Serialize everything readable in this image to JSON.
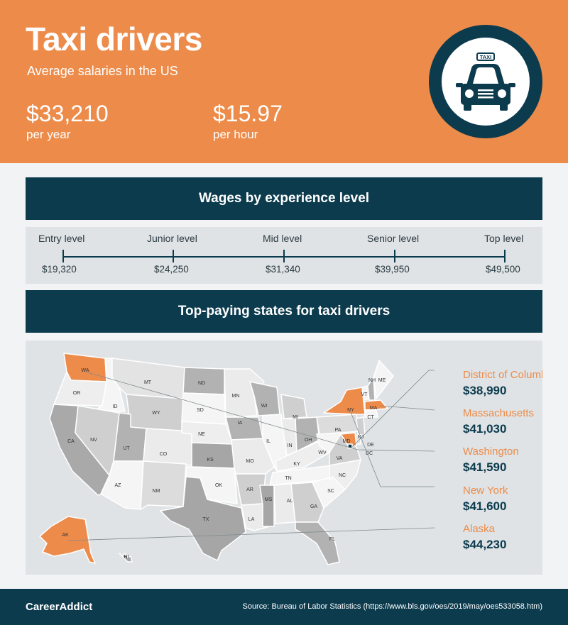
{
  "header": {
    "title": "Taxi drivers",
    "subtitle": "Average salaries in the US",
    "yearly": {
      "value": "$33,210",
      "unit": "per year"
    },
    "hourly": {
      "value": "$15.97",
      "unit": "per hour"
    },
    "taxi_sign": "TAXI",
    "icon": "taxi-icon",
    "colors": {
      "accent": "#ed8b4a",
      "navy": "#0c3b4e"
    }
  },
  "experience": {
    "heading": "Wages by experience level",
    "levels": [
      {
        "label": "Entry level",
        "value": "$19,320"
      },
      {
        "label": "Junior level",
        "value": "$24,250"
      },
      {
        "label": "Mid level",
        "value": "$31,340"
      },
      {
        "label": "Senior level",
        "value": "$39,950"
      },
      {
        "label": "Top level",
        "value": "$49,500"
      }
    ]
  },
  "states": {
    "heading": "Top-paying states for taxi drivers",
    "top": [
      {
        "name": "District of Columbia",
        "value": "$38,990"
      },
      {
        "name": "Massachusetts",
        "value": "$41,030"
      },
      {
        "name": "Washington",
        "value": "$41,590"
      },
      {
        "name": "New York",
        "value": "$41,600"
      },
      {
        "name": "Alaska",
        "value": "$44,230"
      }
    ],
    "map_labels": [
      "WA",
      "OR",
      "CA",
      "ID",
      "NV",
      "MT",
      "WY",
      "UT",
      "AZ",
      "CO",
      "NM",
      "ND",
      "SD",
      "NE",
      "KS",
      "OK",
      "TX",
      "MN",
      "IA",
      "MO",
      "AR",
      "LA",
      "WI",
      "IL",
      "MI",
      "IN",
      "OH",
      "KY",
      "TN",
      "MS",
      "AL",
      "GA",
      "FL",
      "SC",
      "NC",
      "VA",
      "WV",
      "PA",
      "NY",
      "VT",
      "NH",
      "ME",
      "MA",
      "CT",
      "NJ",
      "DE",
      "MD",
      "DC",
      "AK",
      "HI"
    ]
  },
  "footer": {
    "brand": "CareerAddict",
    "source": "Source: Bureau of Labor Statistics (https://www.bls.gov/oes/2019/may/oes533058.htm)"
  }
}
